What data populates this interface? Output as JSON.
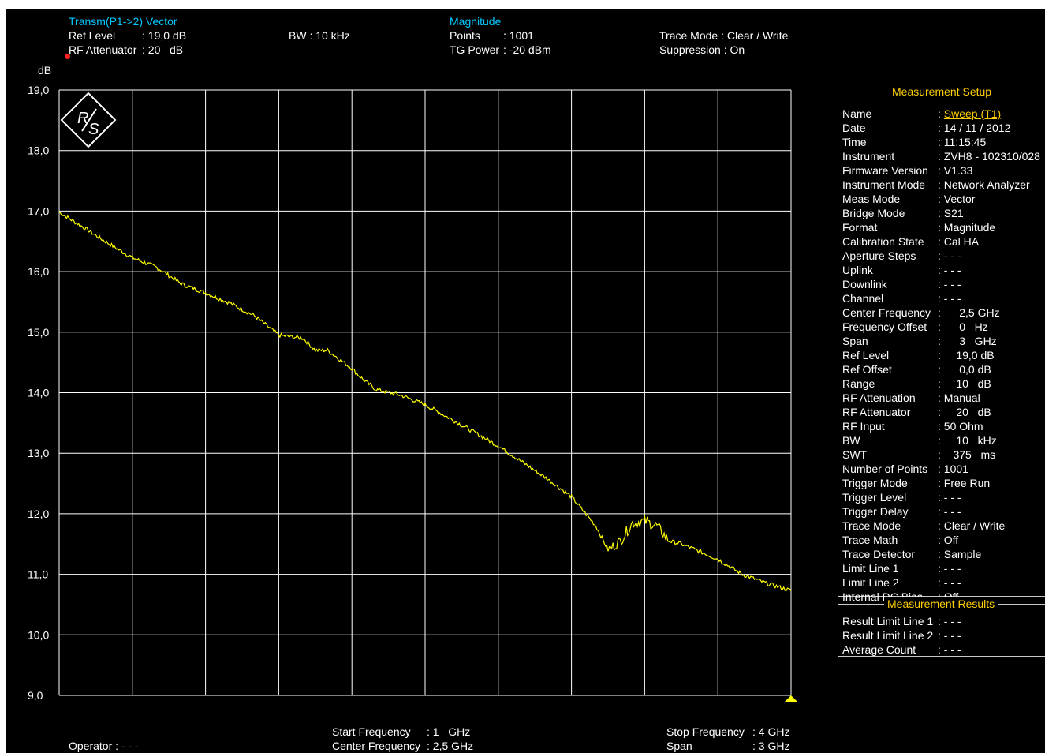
{
  "header": {
    "mode_title": "Transm(P1->2) Vector",
    "ref_level_label": "Ref Level",
    "ref_level_value": ": 19,0 dB",
    "rf_att_label": "RF Attenuator",
    "rf_att_value": ": 20   dB",
    "bw": "BW : 10 kHz",
    "format_title": "Magnitude",
    "points_label": "Points",
    "points_value": ": 1001",
    "tg_label": "TG Power",
    "tg_value": ": -20 dBm",
    "trace_mode": "Trace Mode : Clear / Write",
    "suppression": "Suppression : On",
    "unit": "dB"
  },
  "colors": {
    "trace": "#ffff00",
    "grid": "#ffffff",
    "title": "#00c8ff",
    "panel_title": "#ffd000",
    "marker": "#ffff00"
  },
  "icons": {
    "logo": "rohde-schwarz-logo",
    "status": "red-dot-icon",
    "marker": "triangle-marker-icon"
  },
  "chart_data": {
    "type": "line",
    "title": "",
    "xlabel": "",
    "ylabel": "dB",
    "xlim": [
      1,
      4
    ],
    "ylim": [
      9,
      19
    ],
    "x_unit": "GHz",
    "grid": true,
    "y_ticks": [
      "19,0",
      "18,0",
      "17,0",
      "16,0",
      "15,0",
      "14,0",
      "13,0",
      "12,0",
      "11,0",
      "10,0",
      "9,0"
    ],
    "series": [
      {
        "x": [
          1.0,
          1.1,
          1.2,
          1.3,
          1.4,
          1.5,
          1.6,
          1.7,
          1.8,
          1.9,
          2.0,
          2.05,
          2.1,
          2.15,
          2.2,
          2.25,
          2.3,
          2.4,
          2.5,
          2.6,
          2.7,
          2.8,
          2.9,
          3.0,
          3.1,
          3.2,
          3.25,
          3.3,
          3.35,
          3.4,
          3.45,
          3.5,
          3.55,
          3.6,
          3.7,
          3.8,
          3.9,
          4.0
        ],
        "y": [
          16.98,
          16.73,
          16.47,
          16.23,
          16.07,
          15.8,
          15.65,
          15.48,
          15.27,
          14.95,
          14.9,
          14.7,
          14.7,
          14.55,
          14.4,
          14.2,
          14.05,
          13.96,
          13.8,
          13.58,
          13.35,
          13.12,
          12.85,
          12.58,
          12.28,
          11.8,
          11.4,
          11.55,
          11.85,
          11.88,
          11.8,
          11.55,
          11.5,
          11.42,
          11.25,
          11.0,
          10.85,
          10.73
        ]
      }
    ]
  },
  "footer": {
    "operator": "Operator : - - -",
    "start_label": "Start Frequency",
    "start_value": ": 1   GHz",
    "center_label": "Center Frequency",
    "center_value": ": 2,5 GHz",
    "stop_label": "Stop Frequency",
    "stop_value": ": 4 GHz",
    "span_label": "Span",
    "span_value": ": 3 GHz"
  },
  "setup": {
    "title": "Measurement Setup",
    "rows": [
      {
        "k": "Name",
        "v": ": Sweep (T1)"
      },
      {
        "k": "Date",
        "v": ": 14 / 11 / 2012"
      },
      {
        "k": "Time",
        "v": ": 11:15:45"
      },
      {
        "k": "Instrument",
        "v": ": ZVH8 - 102310/028"
      },
      {
        "k": "Firmware Version",
        "v": ": V1.33"
      },
      {
        "k": "Instrument Mode",
        "v": ": Network Analyzer"
      },
      {
        "k": "Meas Mode",
        "v": ": Vector"
      },
      {
        "k": "Bridge Mode",
        "v": ": S21"
      },
      {
        "k": "Format",
        "v": ": Magnitude"
      },
      {
        "k": "Calibration State",
        "v": ": Cal HA"
      },
      {
        "k": "Aperture Steps",
        "v": ": - - -"
      },
      {
        "k": "Uplink",
        "v": ": - - -"
      },
      {
        "k": "Downlink",
        "v": ": - - -"
      },
      {
        "k": "Channel",
        "v": ": - - -"
      },
      {
        "k": "Center Frequency",
        "v": ":      2,5 GHz"
      },
      {
        "k": "Frequency Offset",
        "v": ":      0   Hz"
      },
      {
        "k": "Span",
        "v": ":      3   GHz"
      },
      {
        "k": "Ref Level",
        "v": ":     19,0 dB"
      },
      {
        "k": "Ref Offset",
        "v": ":      0,0 dB"
      },
      {
        "k": "Range",
        "v": ":     10   dB"
      },
      {
        "k": "RF Attenuation",
        "v": ": Manual"
      },
      {
        "k": "RF Attenuator",
        "v": ":     20   dB"
      },
      {
        "k": "RF Input",
        "v": ": 50 Ohm"
      },
      {
        "k": "BW",
        "v": ":     10   kHz"
      },
      {
        "k": "SWT",
        "v": ":    375   ms"
      },
      {
        "k": "Number of Points",
        "v": ": 1001"
      },
      {
        "k": "Trigger Mode",
        "v": ": Free Run"
      },
      {
        "k": "Trigger Level",
        "v": ": - - -"
      },
      {
        "k": "Trigger Delay",
        "v": ": - - -"
      },
      {
        "k": "Trace Mode",
        "v": ": Clear / Write"
      },
      {
        "k": "Trace Math",
        "v": ": Off"
      },
      {
        "k": "Trace Detector",
        "v": ": Sample"
      },
      {
        "k": "Limit Line 1",
        "v": ": - - -"
      },
      {
        "k": "Limit Line 2",
        "v": ": - - -"
      },
      {
        "k": "Internal DC Bias",
        "v": ": Off"
      }
    ]
  },
  "results": {
    "title": "Measurement Results",
    "rows": [
      {
        "k": "Result Limit Line 1",
        "v": ": - - -"
      },
      {
        "k": "Result Limit Line 2",
        "v": ": - - -"
      },
      {
        "k": "Average Count",
        "v": ": - - -"
      }
    ]
  }
}
